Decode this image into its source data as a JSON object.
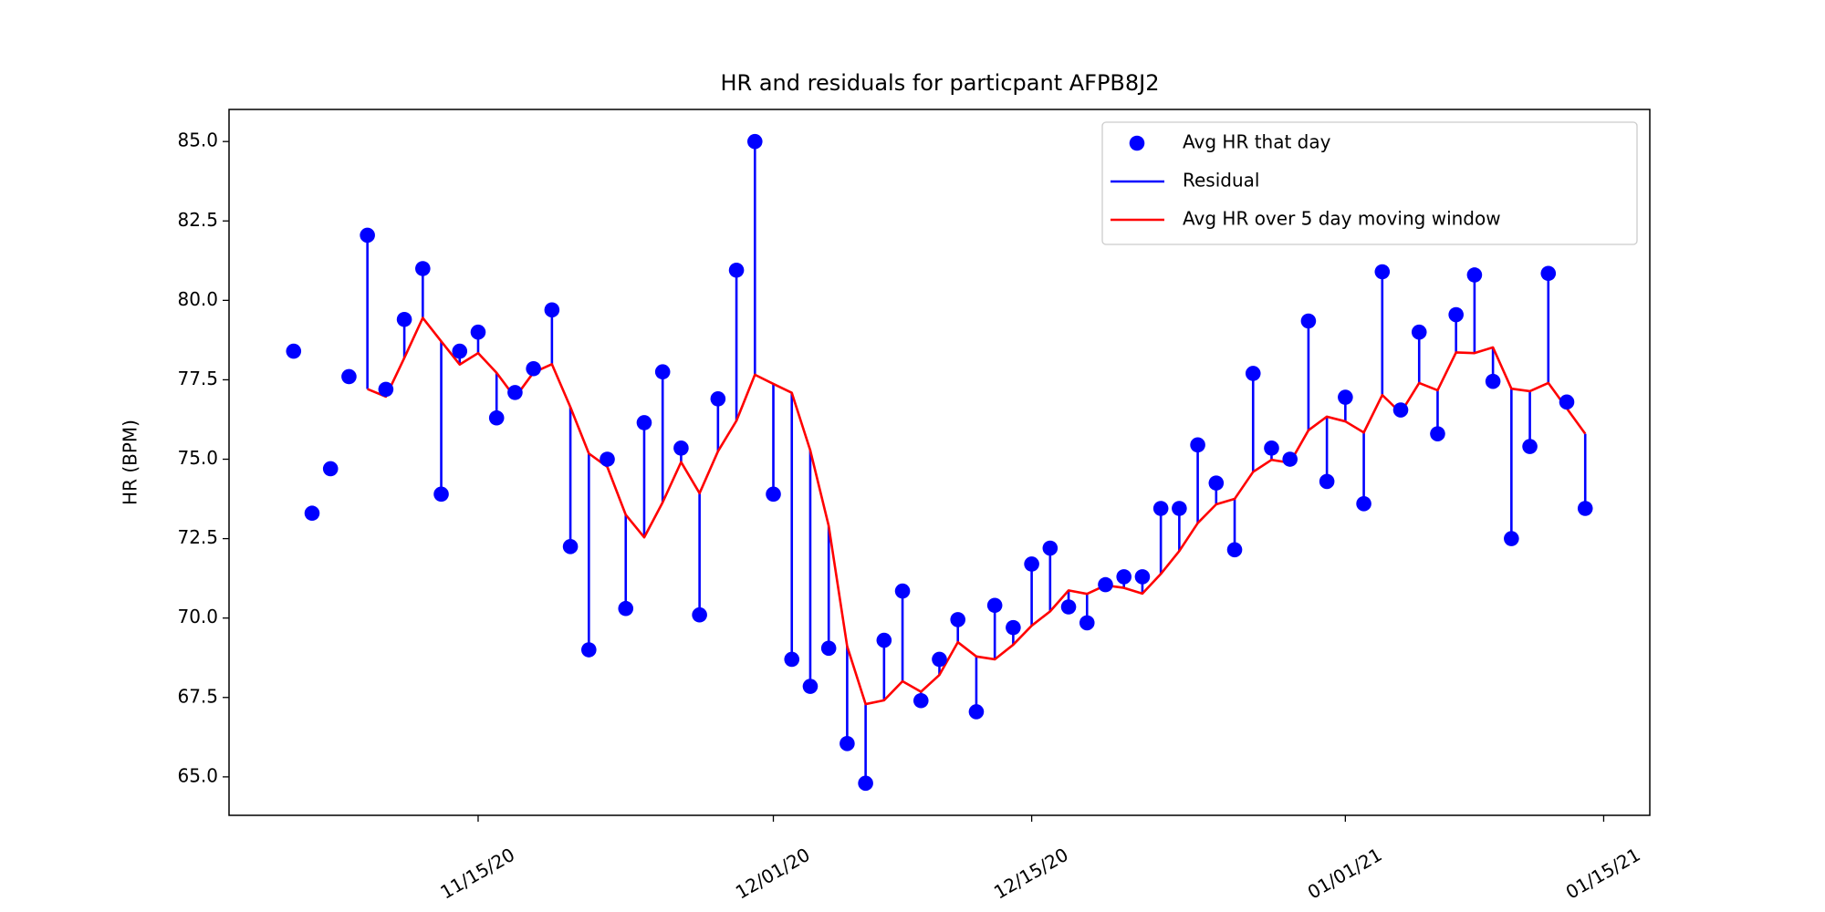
{
  "chart_data": {
    "type": "line",
    "title": "HR and residuals for particpant AFPB8J2",
    "y_label": "HR (BPM)",
    "x": [
      "2020-11-05",
      "2020-11-06",
      "2020-11-07",
      "2020-11-08",
      "2020-11-09",
      "2020-11-10",
      "2020-11-11",
      "2020-11-12",
      "2020-11-13",
      "2020-11-14",
      "2020-11-15",
      "2020-11-16",
      "2020-11-17",
      "2020-11-18",
      "2020-11-19",
      "2020-11-20",
      "2020-11-21",
      "2020-11-22",
      "2020-11-23",
      "2020-11-24",
      "2020-11-25",
      "2020-11-26",
      "2020-11-27",
      "2020-11-28",
      "2020-11-29",
      "2020-11-30",
      "2020-12-01",
      "2020-12-02",
      "2020-12-03",
      "2020-12-04",
      "2020-12-05",
      "2020-12-06",
      "2020-12-07",
      "2020-12-08",
      "2020-12-09",
      "2020-12-10",
      "2020-12-11",
      "2020-12-12",
      "2020-12-13",
      "2020-12-14",
      "2020-12-15",
      "2020-12-16",
      "2020-12-17",
      "2020-12-18",
      "2020-12-19",
      "2020-12-20",
      "2020-12-21",
      "2020-12-22",
      "2020-12-23",
      "2020-12-24",
      "2020-12-25",
      "2020-12-26",
      "2020-12-27",
      "2020-12-28",
      "2020-12-29",
      "2020-12-30",
      "2020-12-31",
      "2021-01-01",
      "2021-01-02",
      "2021-01-03",
      "2021-01-04",
      "2021-01-05",
      "2021-01-06",
      "2021-01-07",
      "2021-01-08",
      "2021-01-09",
      "2021-01-10",
      "2021-01-11",
      "2021-01-12",
      "2021-01-13",
      "2021-01-14"
    ],
    "series": [
      {
        "name": "Avg HR that day",
        "color": "#0000ff",
        "values": [
          78.4,
          73.3,
          74.7,
          77.6,
          82.05,
          77.2,
          79.4,
          81.0,
          73.9,
          78.4,
          79.0,
          76.3,
          77.1,
          77.85,
          79.7,
          72.25,
          69.0,
          75.0,
          70.3,
          76.15,
          77.75,
          75.35,
          70.1,
          76.9,
          80.95,
          85.0,
          73.9,
          68.7,
          67.85,
          69.05,
          66.05,
          64.8,
          69.3,
          70.85,
          67.4,
          68.7,
          69.95,
          67.05,
          70.4,
          69.7,
          71.7,
          72.2,
          70.35,
          69.85,
          71.05,
          71.3,
          71.3,
          73.45,
          73.45,
          75.45,
          74.25,
          72.15,
          77.7,
          75.35,
          75.0,
          79.35,
          74.3,
          76.95,
          73.6,
          80.9,
          76.55,
          79.0,
          75.8,
          79.55,
          80.8,
          77.45,
          72.5,
          75.4,
          80.85,
          76.8,
          73.45
        ]
      },
      {
        "name": "Residual",
        "color": "#0000ff"
      },
      {
        "name": "Avg HR over 5 day moving window",
        "color": "#ff0000",
        "values": [
          null,
          null,
          null,
          null,
          77.21,
          76.97,
          78.19,
          79.45,
          78.71,
          77.98,
          78.34,
          77.72,
          76.94,
          77.73,
          77.99,
          76.64,
          75.18,
          74.76,
          73.25,
          72.54,
          73.64,
          74.91,
          73.93,
          75.25,
          76.21,
          77.66,
          77.37,
          77.09,
          75.28,
          72.9,
          69.11,
          67.29,
          67.41,
          68.01,
          67.68,
          68.21,
          69.24,
          68.79,
          68.7,
          69.16,
          69.76,
          70.21,
          70.87,
          70.76,
          71.03,
          70.95,
          70.77,
          71.39,
          72.11,
          72.99,
          73.58,
          73.75,
          74.6,
          74.98,
          74.89,
          75.91,
          76.34,
          76.19,
          75.84,
          77.02,
          76.46,
          77.4,
          77.17,
          78.36,
          78.34,
          78.52,
          77.22,
          77.14,
          77.4,
          76.6,
          75.8
        ]
      }
    ],
    "xlim": [
      "2020-11-01T12:00:00Z",
      "2021-01-17T12:00:00Z"
    ],
    "xticks": [
      {
        "value": "2020-11-15",
        "label": "11/15/20"
      },
      {
        "value": "2020-12-01",
        "label": "12/01/20"
      },
      {
        "value": "2020-12-15",
        "label": "12/15/20"
      },
      {
        "value": "2021-01-01",
        "label": "01/01/21"
      },
      {
        "value": "2021-01-15",
        "label": "01/15/21"
      }
    ],
    "ylim": [
      63.79,
      86.01
    ],
    "yticks": [
      {
        "value": 65,
        "label": "65.0"
      },
      {
        "value": 67.5,
        "label": "67.5"
      },
      {
        "value": 70,
        "label": "70.0"
      },
      {
        "value": 72.5,
        "label": "72.5"
      },
      {
        "value": 75,
        "label": "75.0"
      },
      {
        "value": 77.5,
        "label": "77.5"
      },
      {
        "value": 80,
        "label": "80.0"
      },
      {
        "value": 82.5,
        "label": "82.5"
      },
      {
        "value": 85,
        "label": "85.0"
      }
    ],
    "grid": false,
    "legend": "upper right"
  }
}
